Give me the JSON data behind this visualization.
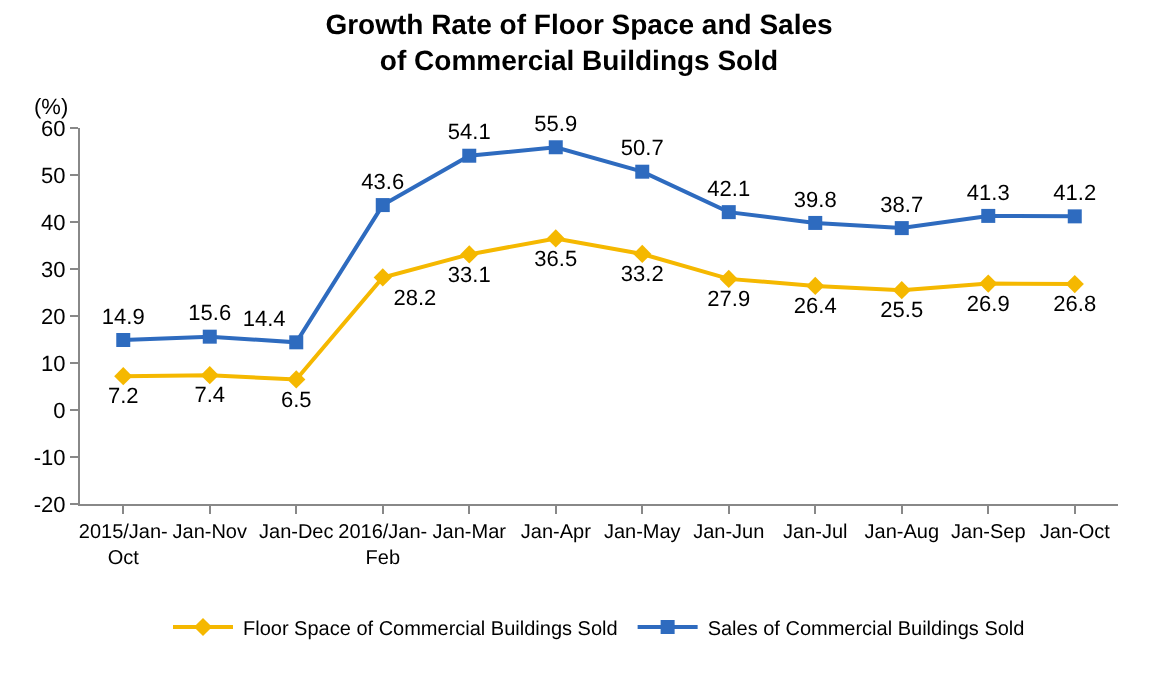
{
  "chart_data": {
    "type": "line",
    "title": "Growth Rate of Floor Space and Sales\nof Commercial Buildings Sold",
    "ylabel": "(%)",
    "categories": [
      "2015/Jan-Oct",
      "Jan-Nov",
      "Jan-Dec",
      "2016/Jan-Feb",
      "Jan-Mar",
      "Jan-Apr",
      "Jan-May",
      "Jan-Jun",
      "Jan-Jul",
      "Jan-Aug",
      "Jan-Sep",
      "Jan-Oct"
    ],
    "series": [
      {
        "name": "Floor Space of Commercial Buildings Sold",
        "color": "#f5b800",
        "marker": "diamond",
        "values": [
          7.2,
          7.4,
          6.5,
          28.2,
          33.1,
          36.5,
          33.2,
          27.9,
          26.4,
          25.5,
          26.9,
          26.8
        ]
      },
      {
        "name": "Sales of Commercial Buildings Sold",
        "color": "#2e6bbf",
        "marker": "square",
        "values": [
          14.9,
          15.6,
          14.4,
          43.6,
          54.1,
          55.9,
          50.7,
          42.1,
          39.8,
          38.7,
          41.3,
          41.2
        ]
      }
    ],
    "ylim": [
      -20,
      60
    ],
    "yticks": [
      -20,
      -10,
      0,
      10,
      20,
      30,
      40,
      50,
      60
    ],
    "grid": false,
    "legend": "bottom",
    "data_labels": true
  }
}
